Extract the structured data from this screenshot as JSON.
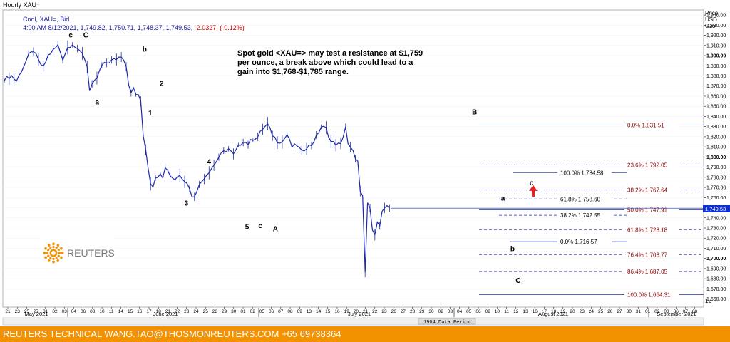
{
  "window_title": "Hourly XAU=",
  "legend": {
    "line1": "Cndl, XAU=, Bid",
    "line2_prefix": "4:00 AM 8/12/2021, 1,749.82, 1,750.71, 1,748.37, 1,749.53,",
    "line2_change": "-2.0327, (-0.12%)"
  },
  "annotation": [
    "Spot gold <XAU=> may test a resistance at $1,759",
    "per ounce, a break above which could lead to a",
    "gain into $1,768-$1,785 range."
  ],
  "axis_header": [
    "Price",
    "USD",
    "Ozs"
  ],
  "last_price_tag": "1,749.53",
  "period_label": "1904 Data Period",
  "footer_text": "REUTERS TECHNICAL  WANG.TAO@THOSMONREUTERS.COM  +65 69738364",
  "logo_text": "REUTERS",
  "colors": {
    "candle": "#1e2aa8",
    "fib": "#8b0000",
    "footer": "#f39200",
    "arrow": "#e52222",
    "text_blue": "#1a1aa0"
  },
  "chart_data": {
    "type": "candlestick",
    "ylim": [
      1652,
      1945
    ],
    "ytick_step": 10,
    "y_labels_bold": [
      "1,900.00",
      "1,800.00",
      "1,700.00"
    ],
    "x_day_labels": [
      "21",
      "23",
      "25",
      "27",
      "31",
      "02",
      "03",
      "04",
      "06",
      "08",
      "10",
      "11",
      "14",
      "15",
      "16",
      "17",
      "18",
      "21",
      "22",
      "23",
      "24",
      "25",
      "28",
      "29",
      "30",
      "01",
      "02",
      "05",
      "06",
      "07",
      "08",
      "09",
      "13",
      "14",
      "15",
      "16",
      "19",
      "20",
      "21",
      "22",
      "23",
      "26",
      "27",
      "28",
      "29",
      "30",
      "02",
      "03",
      "04",
      "05",
      "06",
      "09",
      "10",
      "11",
      "12",
      "13",
      "16",
      "17",
      "18",
      "19",
      "20",
      "23",
      "24",
      "25",
      "26",
      "27",
      "30",
      "31",
      "01",
      "02",
      "03",
      "06",
      "07",
      "08"
    ],
    "x_month_labels": [
      "May 2021",
      "June 2021",
      "July 2021",
      "August 2021",
      "September 2021"
    ],
    "price_path": [
      [
        0,
        1877
      ],
      [
        3,
        1880
      ],
      [
        5,
        1875
      ],
      [
        8,
        1890
      ],
      [
        10,
        1900
      ],
      [
        12,
        1905
      ],
      [
        14,
        1895
      ],
      [
        16,
        1888
      ],
      [
        18,
        1900
      ],
      [
        20,
        1905
      ],
      [
        22,
        1910
      ],
      [
        24,
        1897
      ],
      [
        26,
        1908
      ],
      [
        28,
        1912
      ],
      [
        30,
        1905
      ],
      [
        32,
        1903
      ],
      [
        34,
        1890
      ],
      [
        35,
        1865
      ],
      [
        36,
        1870
      ],
      [
        38,
        1878
      ],
      [
        40,
        1890
      ],
      [
        42,
        1893
      ],
      [
        44,
        1895
      ],
      [
        46,
        1897
      ],
      [
        48,
        1900
      ],
      [
        49,
        1897
      ],
      [
        50,
        1890
      ],
      [
        51,
        1873
      ],
      [
        52,
        1862
      ],
      [
        53,
        1868
      ],
      [
        54,
        1862
      ],
      [
        55,
        1860
      ],
      [
        56,
        1855
      ],
      [
        57,
        1822
      ],
      [
        58,
        1808
      ],
      [
        59,
        1790
      ],
      [
        60,
        1775
      ],
      [
        61,
        1772
      ],
      [
        62,
        1778
      ],
      [
        63,
        1782
      ],
      [
        64,
        1785
      ],
      [
        65,
        1781
      ],
      [
        66,
        1789
      ],
      [
        67,
        1788
      ],
      [
        68,
        1782
      ],
      [
        70,
        1778
      ],
      [
        72,
        1783
      ],
      [
        74,
        1777
      ],
      [
        76,
        1770
      ],
      [
        77,
        1760
      ],
      [
        78,
        1762
      ],
      [
        79,
        1768
      ],
      [
        80,
        1772
      ],
      [
        82,
        1780
      ],
      [
        84,
        1786
      ],
      [
        86,
        1792
      ],
      [
        88,
        1800
      ],
      [
        90,
        1805
      ],
      [
        92,
        1808
      ],
      [
        94,
        1802
      ],
      [
        96,
        1810
      ],
      [
        98,
        1816
      ],
      [
        100,
        1813
      ],
      [
        102,
        1818
      ],
      [
        104,
        1820
      ],
      [
        106,
        1828
      ],
      [
        108,
        1832
      ],
      [
        110,
        1822
      ],
      [
        112,
        1816
      ],
      [
        114,
        1815
      ],
      [
        116,
        1822
      ],
      [
        118,
        1810
      ],
      [
        120,
        1812
      ],
      [
        122,
        1805
      ],
      [
        124,
        1810
      ],
      [
        126,
        1812
      ],
      [
        128,
        1820
      ],
      [
        130,
        1830
      ],
      [
        132,
        1828
      ],
      [
        134,
        1815
      ],
      [
        136,
        1813
      ],
      [
        138,
        1812
      ],
      [
        140,
        1830
      ],
      [
        141,
        1812
      ],
      [
        143,
        1805
      ],
      [
        145,
        1795
      ],
      [
        146,
        1765
      ],
      [
        147,
        1760
      ],
      [
        148,
        1686
      ],
      [
        149,
        1755
      ],
      [
        150,
        1748
      ],
      [
        151,
        1730
      ],
      [
        152,
        1725
      ],
      [
        153,
        1735
      ],
      [
        154,
        1732
      ],
      [
        155,
        1745
      ],
      [
        156,
        1748
      ],
      [
        157,
        1752
      ],
      [
        158,
        1749.5
      ]
    ],
    "last_index": 158,
    "fib_lines": [
      {
        "label": "0.0%",
        "value": 1831.51,
        "value_text": "1,831.51",
        "level": "0.0%",
        "style": "solid"
      },
      {
        "label": "23.6%",
        "value": 1792.05,
        "value_text": "1,792.05",
        "level": "23.6%",
        "style": "dashed"
      },
      {
        "label": "38.2%",
        "value": 1767.64,
        "value_text": "1,767.64",
        "level": "38.2%",
        "style": "dashed"
      },
      {
        "label": "50.0%",
        "value": 1747.91,
        "value_text": "1,747.91",
        "level": "50.0%",
        "style": "solid"
      },
      {
        "label": "61.8%",
        "value": 1728.18,
        "value_text": "1,728.18",
        "level": "61.8%",
        "style": "dashed"
      },
      {
        "label": "76.4%",
        "value": 1703.77,
        "value_text": "1,703.77",
        "level": "76.4%",
        "style": "dashed"
      },
      {
        "label": "86.4%",
        "value": 1687.05,
        "value_text": "1,687.05",
        "level": "86.4%",
        "style": "dashed"
      },
      {
        "label": "100.0%",
        "value": 1664.31,
        "value_text": "1,664.31",
        "level": "100.0%",
        "style": "solid"
      }
    ],
    "fib_inner": [
      {
        "value": 1784.58,
        "text": "100.0%  1,784.58",
        "style": "solid"
      },
      {
        "value": 1758.6,
        "text": "61.8%   1,758.60",
        "style": "dashed"
      },
      {
        "value": 1742.55,
        "text": "38.2%   1,742.55",
        "style": "dashed"
      },
      {
        "value": 1716.57,
        "text": "0.0%    1,716.57",
        "style": "solid"
      }
    ],
    "wave_labels": [
      {
        "text": "c",
        "x": 35,
        "y": 1918
      },
      {
        "text": "C",
        "x": 43,
        "y": 1918
      },
      {
        "text": "a",
        "x": 49,
        "y": 1852
      },
      {
        "text": "b",
        "x": 74,
        "y": 1904
      },
      {
        "text": "1",
        "x": 77,
        "y": 1841
      },
      {
        "text": "2",
        "x": 83,
        "y": 1870
      },
      {
        "text": "3",
        "x": 96,
        "y": 1752
      },
      {
        "text": "4",
        "x": 108,
        "y": 1793
      },
      {
        "text": "5",
        "x": 128,
        "y": 1729
      },
      {
        "text": "c",
        "x": 135,
        "y": 1730
      },
      {
        "text": "A",
        "x": 143,
        "y": 1727
      },
      {
        "text": "B",
        "x": 248,
        "y": 1842
      },
      {
        "text": "a",
        "x": 263,
        "y": 1757
      },
      {
        "text": "b",
        "x": 268,
        "y": 1707
      },
      {
        "text": "c",
        "x": 278,
        "y": 1772
      },
      {
        "text": "C",
        "x": 271,
        "y": 1676
      }
    ]
  }
}
